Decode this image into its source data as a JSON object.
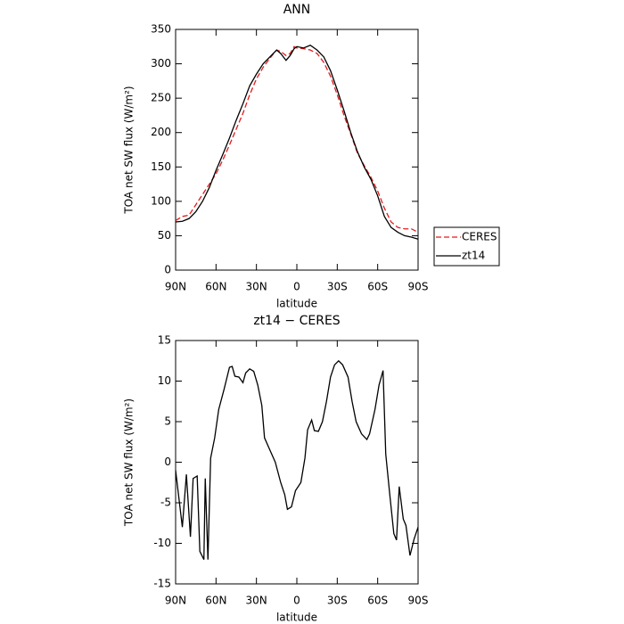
{
  "chart_data": [
    {
      "type": "line",
      "title": "ANN",
      "xlabel": "latitude",
      "ylabel": "TOA net SW flux (W/m²)",
      "x": [
        90,
        85,
        80,
        75,
        70,
        65,
        60,
        55,
        50,
        45,
        40,
        35,
        30,
        25,
        20,
        15,
        12,
        10,
        8,
        5,
        2,
        0,
        -5,
        -10,
        -15,
        -20,
        -25,
        -30,
        -35,
        -40,
        -45,
        -50,
        -55,
        -60,
        -65,
        -70,
        -75,
        -80,
        -85,
        -90
      ],
      "series": [
        {
          "name": "CERES",
          "color": "#e41a1c",
          "dash": true,
          "values": [
            72,
            78,
            80,
            95,
            110,
            125,
            140,
            160,
            182,
            205,
            228,
            255,
            278,
            295,
            308,
            320,
            318,
            315,
            312,
            315,
            325,
            323,
            322,
            320,
            315,
            302,
            282,
            255,
            225,
            198,
            170,
            152,
            135,
            115,
            90,
            70,
            62,
            60,
            60,
            55
          ]
        },
        {
          "name": "zt14",
          "color": "#000000",
          "dash": false,
          "values": [
            70,
            71,
            75,
            85,
            100,
            120,
            145,
            168,
            192,
            218,
            242,
            268,
            285,
            300,
            310,
            320,
            315,
            310,
            305,
            312,
            322,
            325,
            323,
            327,
            320,
            310,
            290,
            262,
            232,
            200,
            172,
            150,
            132,
            108,
            78,
            62,
            55,
            50,
            48,
            45
          ]
        }
      ],
      "xlim": [
        90,
        -90
      ],
      "xticks": [
        {
          "value": 90,
          "label": "90N"
        },
        {
          "value": 60,
          "label": "60N"
        },
        {
          "value": 30,
          "label": "30N"
        },
        0,
        {
          "value": -30,
          "label": "30S"
        },
        {
          "value": -60,
          "label": "60S"
        },
        {
          "value": -90,
          "label": "90S"
        }
      ],
      "ylim": [
        0,
        350
      ],
      "yticks": [
        0,
        50,
        100,
        150,
        200,
        250,
        300,
        350
      ],
      "legend": "right"
    },
    {
      "type": "line",
      "title": "zt14 − CERES",
      "xlabel": "latitude",
      "ylabel": "TOA net SW flux (W/m²)",
      "x": [
        90,
        85,
        82,
        79,
        77,
        74,
        72,
        69,
        68,
        66,
        64,
        61,
        58,
        54,
        50,
        48,
        46,
        43,
        40,
        38,
        35,
        32,
        29,
        26,
        24,
        20,
        16,
        12,
        9,
        7,
        4,
        1,
        -3,
        -6,
        -8,
        -11,
        -13,
        -16,
        -19,
        -22,
        -25,
        -28,
        -31,
        -34,
        -38,
        -41,
        -44,
        -48,
        -52,
        -54,
        -58,
        -61,
        -64,
        -66,
        -69,
        -72,
        -74,
        -76,
        -79,
        -81,
        -84,
        -87,
        -90
      ],
      "color": "#000000",
      "values": [
        -1,
        -8,
        -1.5,
        -9.2,
        -2,
        -1.7,
        -11,
        -12,
        -2,
        -12,
        0.5,
        3,
        6.5,
        9,
        11.7,
        11.8,
        10.6,
        10.5,
        9.8,
        11,
        11.5,
        11.2,
        9.5,
        7,
        3,
        1.5,
        0,
        -2.5,
        -4,
        -5.8,
        -5.5,
        -3.5,
        -2.5,
        0.5,
        4,
        5.2,
        3.9,
        3.8,
        5,
        7.5,
        10.5,
        12,
        12.5,
        12,
        10.5,
        7.5,
        5,
        3.5,
        2.8,
        3.5,
        6.5,
        9.5,
        11.3,
        1,
        -4,
        -8.8,
        -9.6,
        -3,
        -7,
        -7.8,
        -11.5,
        -9.5,
        -8
      ],
      "xlim": [
        90,
        -90
      ],
      "xticks": [
        {
          "value": 90,
          "label": "90N"
        },
        {
          "value": 60,
          "label": "60N"
        },
        {
          "value": 30,
          "label": "30N"
        },
        0,
        {
          "value": -30,
          "label": "30S"
        },
        {
          "value": -60,
          "label": "60S"
        },
        {
          "value": -90,
          "label": "90S"
        }
      ],
      "ylim": [
        -15,
        15
      ],
      "yticks": [
        -15,
        -10,
        -5,
        0,
        5,
        10,
        15
      ]
    }
  ]
}
